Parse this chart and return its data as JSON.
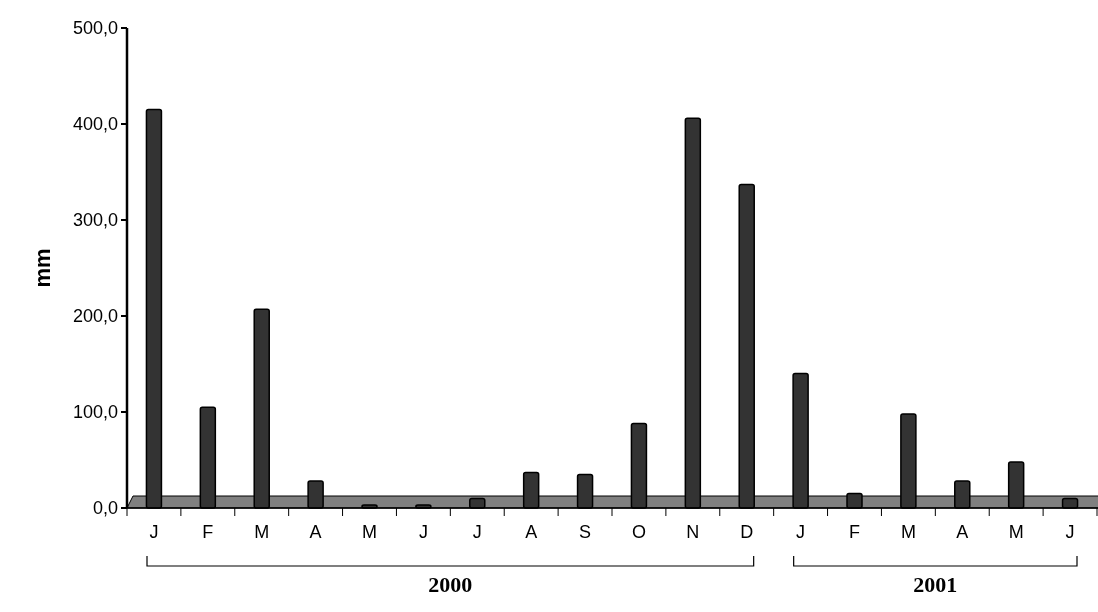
{
  "chart_data": {
    "type": "bar",
    "ylabel": "mm",
    "categories": [
      "J",
      "F",
      "M",
      "A",
      "M",
      "J",
      "J",
      "A",
      "S",
      "O",
      "N",
      "D",
      "J",
      "F",
      "M",
      "A",
      "M",
      "J"
    ],
    "values": [
      415,
      105,
      207,
      28,
      3,
      3,
      10,
      37,
      35,
      88,
      406,
      337,
      140,
      15,
      98,
      28,
      48,
      10
    ],
    "color": "#333333",
    "ylim": [
      0,
      500
    ],
    "yticks": [
      {
        "value": 0,
        "label": "0,0"
      },
      {
        "value": 100,
        "label": "100,0"
      },
      {
        "value": 200,
        "label": "200,0"
      },
      {
        "value": 300,
        "label": "300,0"
      },
      {
        "value": 400,
        "label": "400,0"
      },
      {
        "value": 500,
        "label": "500,0"
      }
    ],
    "annotations": [
      "2000",
      "2001"
    ],
    "grid": false
  }
}
